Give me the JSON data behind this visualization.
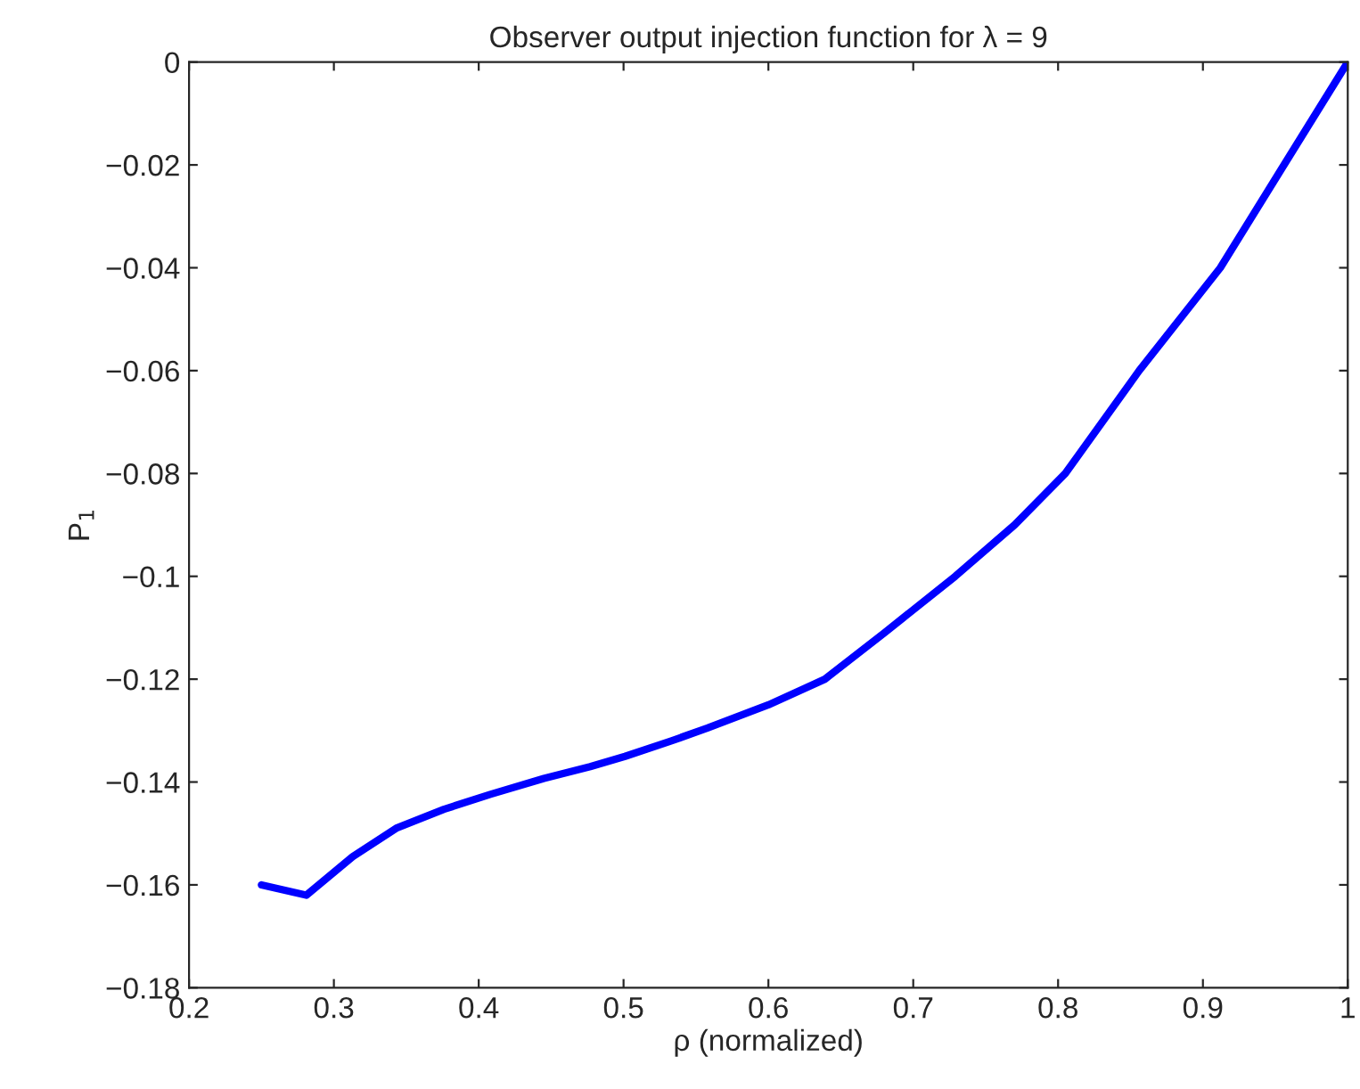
{
  "chart_data": {
    "type": "line",
    "title": "Observer output injection function for λ = 9",
    "xlabel": "ρ (normalized)",
    "ylabel": "P$_{1}$",
    "series": [
      {
        "color": "#0000ff",
        "x": [
          0.25,
          0.281,
          0.313,
          0.343,
          0.376,
          0.408,
          0.445,
          0.477,
          0.501,
          0.533,
          0.558,
          0.6,
          0.639,
          0.68,
          0.729,
          0.77,
          0.805,
          0.856,
          0.912,
          0.956,
          1.0
        ],
        "values": [
          -0.16,
          -0.162,
          -0.1545,
          -0.149,
          -0.1453,
          -0.1424,
          -0.1393,
          -0.137,
          -0.135,
          -0.132,
          -0.1295,
          -0.125,
          -0.12,
          -0.111,
          -0.1,
          -0.09,
          -0.08,
          -0.06,
          -0.04,
          -0.02,
          0
        ]
      }
    ],
    "xlim": [
      0.2,
      1
    ],
    "xticks": [
      0.2,
      0.3,
      0.4,
      0.5,
      0.6,
      0.7,
      0.8,
      0.9,
      {
        "value": 1,
        "label": "1"
      }
    ],
    "ylim": [
      -0.18,
      0
    ],
    "yticks": [
      {
        "value": -0.18,
        "label": "−0.18"
      },
      {
        "value": -0.16,
        "label": "−0.16"
      },
      {
        "value": -0.14,
        "label": "−0.14"
      },
      {
        "value": -0.12,
        "label": "−0.12"
      },
      {
        "value": -0.1,
        "label": "−0.1"
      },
      {
        "value": -0.08,
        "label": "−0.08"
      },
      {
        "value": -0.06,
        "label": "−0.06"
      },
      {
        "value": -0.04,
        "label": "−0.04"
      },
      {
        "value": -0.02,
        "label": "−0.02"
      },
      {
        "value": 0,
        "label": "0"
      }
    ],
    "grid": false,
    "legend": false,
    "line_style": "solid"
  }
}
